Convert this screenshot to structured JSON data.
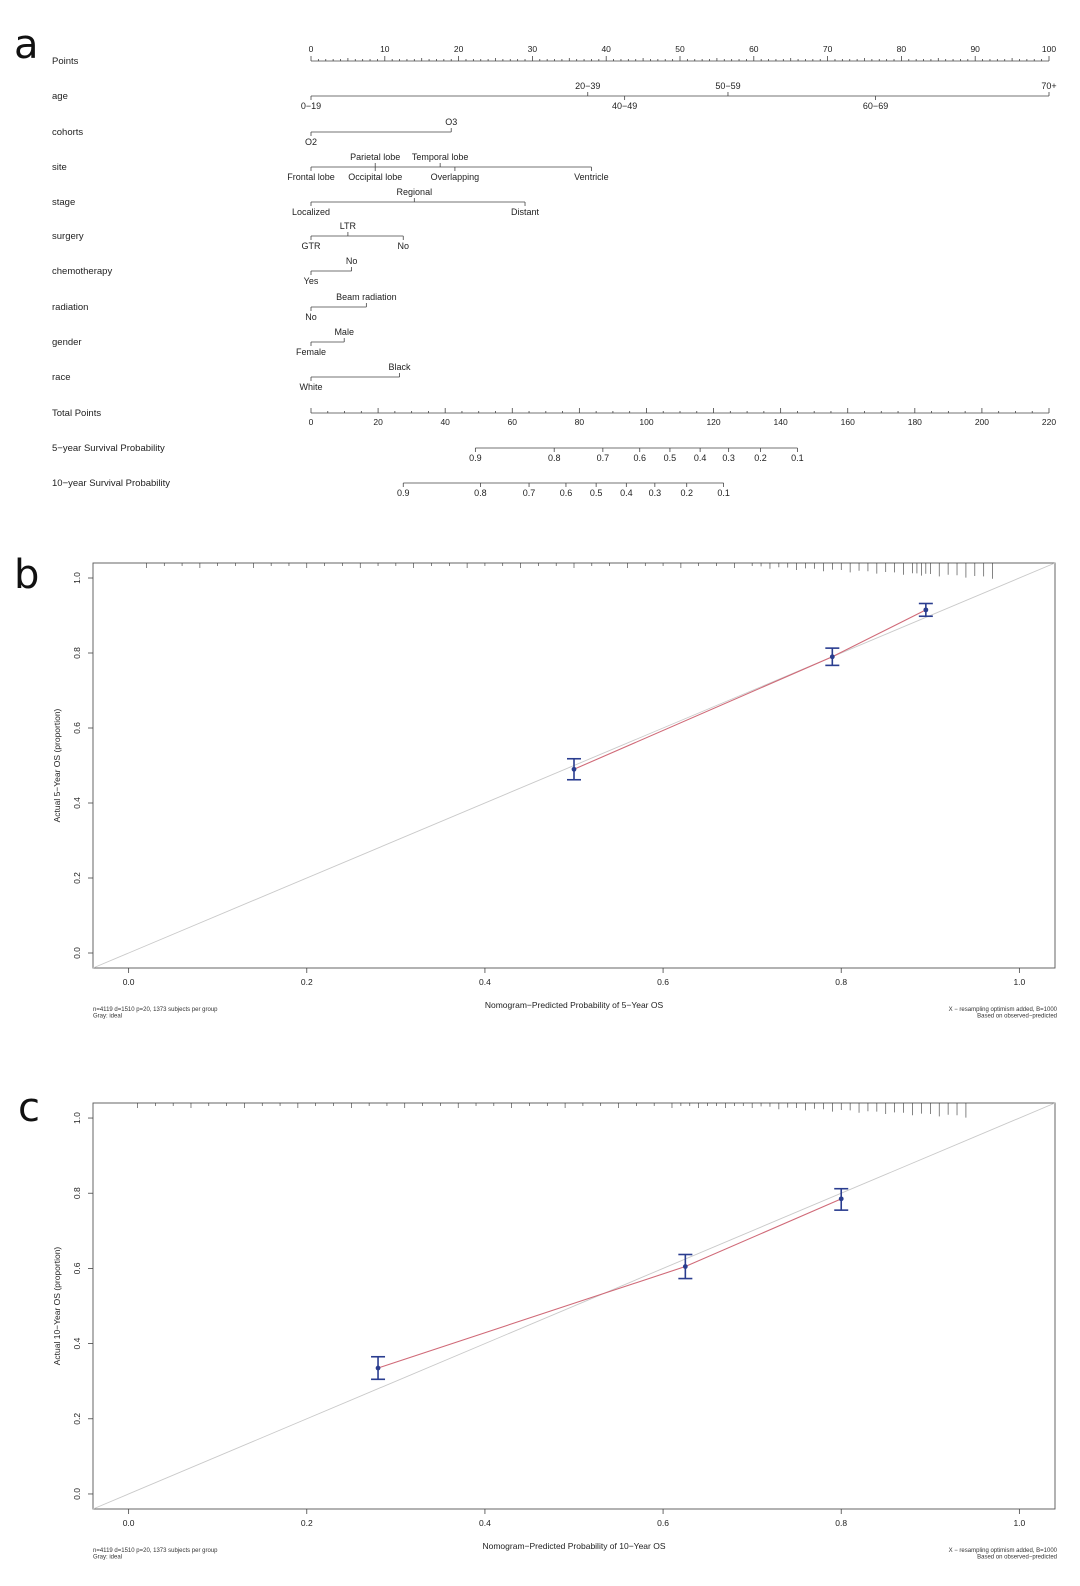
{
  "panels": {
    "a": "a",
    "b": "b",
    "c": "c"
  },
  "nomogram": {
    "rows": [
      {
        "label": "Points",
        "key": "points"
      },
      {
        "label": "age",
        "key": "age"
      },
      {
        "label": "cohorts",
        "key": "cohorts"
      },
      {
        "label": "site",
        "key": "site"
      },
      {
        "label": "stage",
        "key": "stage"
      },
      {
        "label": "surgery",
        "key": "surgery"
      },
      {
        "label": "chemotherapy",
        "key": "chemotherapy"
      },
      {
        "label": "radiation",
        "key": "radiation"
      },
      {
        "label": "gender",
        "key": "gender"
      },
      {
        "label": "race",
        "key": "race"
      },
      {
        "label": "Total Points",
        "key": "total"
      },
      {
        "label": "5−year Survival Probability",
        "key": "surv5"
      },
      {
        "label": "10−year Survival Probability",
        "key": "surv10"
      }
    ],
    "points_ticks": [
      "0",
      "10",
      "20",
      "30",
      "40",
      "50",
      "60",
      "70",
      "80",
      "90",
      "100"
    ],
    "age": [
      {
        "label": "0−19",
        "points": 0,
        "pos": "below"
      },
      {
        "label": "20−39",
        "points": 37.5,
        "pos": "above"
      },
      {
        "label": "40−49",
        "points": 42.5,
        "pos": "below"
      },
      {
        "label": "50−59",
        "points": 56.5,
        "pos": "above"
      },
      {
        "label": "60−69",
        "points": 76.5,
        "pos": "below"
      },
      {
        "label": "70+",
        "points": 100,
        "pos": "above"
      }
    ],
    "cohorts": [
      {
        "label": "O2",
        "points": 0,
        "pos": "below"
      },
      {
        "label": "O3",
        "points": 19,
        "pos": "above"
      }
    ],
    "site": [
      {
        "label": "Frontal lobe",
        "points": 0,
        "pos": "below"
      },
      {
        "label": "Parietal lobe",
        "points": 8.7,
        "pos": "above"
      },
      {
        "label": "Occipital lobe",
        "points": 8.7,
        "pos": "below"
      },
      {
        "label": "Temporal lobe",
        "points": 17.5,
        "pos": "above"
      },
      {
        "label": "Overlapping",
        "points": 19.5,
        "pos": "below"
      },
      {
        "label": "Ventricle",
        "points": 38,
        "pos": "below"
      }
    ],
    "stage": [
      {
        "label": "Localized",
        "points": 0,
        "pos": "below"
      },
      {
        "label": "Regional",
        "points": 14,
        "pos": "above"
      },
      {
        "label": "Distant",
        "points": 29,
        "pos": "below"
      }
    ],
    "surgery": [
      {
        "label": "GTR",
        "points": 0,
        "pos": "below"
      },
      {
        "label": "LTR",
        "points": 5,
        "pos": "above"
      },
      {
        "label": "No",
        "points": 12.5,
        "pos": "below"
      }
    ],
    "chemotherapy": [
      {
        "label": "Yes",
        "points": 0,
        "pos": "below"
      },
      {
        "label": "No",
        "points": 5.5,
        "pos": "above"
      }
    ],
    "radiation": [
      {
        "label": "No",
        "points": 0,
        "pos": "below"
      },
      {
        "label": "Beam radiation",
        "points": 7.5,
        "pos": "above"
      }
    ],
    "gender": [
      {
        "label": "Female",
        "points": 0,
        "pos": "below"
      },
      {
        "label": "Male",
        "points": 4.5,
        "pos": "above"
      }
    ],
    "race": [
      {
        "label": "White",
        "points": 0,
        "pos": "below"
      },
      {
        "label": "Black",
        "points": 12,
        "pos": "above"
      }
    ],
    "total_ticks": [
      "0",
      "20",
      "40",
      "60",
      "80",
      "100",
      "120",
      "140",
      "160",
      "180",
      "200",
      "220"
    ],
    "surv5": [
      {
        "label": "0.9",
        "total": 49
      },
      {
        "label": "0.8",
        "total": 72.5
      },
      {
        "label": "0.7",
        "total": 87
      },
      {
        "label": "0.6",
        "total": 98
      },
      {
        "label": "0.5",
        "total": 107
      },
      {
        "label": "0.4",
        "total": 116
      },
      {
        "label": "0.3",
        "total": 124.5
      },
      {
        "label": "0.2",
        "total": 134
      },
      {
        "label": "0.1",
        "total": 145
      }
    ],
    "surv10": [
      {
        "label": "0.9",
        "total": 27.5
      },
      {
        "label": "0.8",
        "total": 50.5
      },
      {
        "label": "0.7",
        "total": 65
      },
      {
        "label": "0.6",
        "total": 76
      },
      {
        "label": "0.5",
        "total": 85
      },
      {
        "label": "0.4",
        "total": 94
      },
      {
        "label": "0.3",
        "total": 102.5
      },
      {
        "label": "0.2",
        "total": 112
      },
      {
        "label": "0.1",
        "total": 123
      }
    ]
  },
  "chart_data": [
    {
      "type": "scatter",
      "title": "",
      "xlabel": "Nomogram−Predicted Probability of 5−Year OS",
      "ylabel": "Actual 5−Year OS (proportion)",
      "xlim": [
        -0.04,
        1.04
      ],
      "ylim": [
        -0.04,
        1.04
      ],
      "xticks": [
        "0.0",
        "0.2",
        "0.4",
        "0.6",
        "0.8",
        "1.0"
      ],
      "yticks": [
        "0.0",
        "0.2",
        "0.4",
        "0.6",
        "0.8",
        "1.0"
      ],
      "series": [
        {
          "name": "observed",
          "x": [
            0.5,
            0.79,
            0.895
          ],
          "y": [
            0.49,
            0.79,
            0.915
          ],
          "lower": [
            0.462,
            0.767,
            0.898
          ],
          "upper": [
            0.518,
            0.813,
            0.932
          ]
        },
        {
          "name": "ideal",
          "x": [
            -0.04,
            1.04
          ],
          "y": [
            -0.04,
            1.04
          ]
        }
      ],
      "rug": [
        0.02,
        0.04,
        0.06,
        0.08,
        0.1,
        0.12,
        0.14,
        0.16,
        0.18,
        0.2,
        0.22,
        0.24,
        0.26,
        0.28,
        0.3,
        0.32,
        0.34,
        0.36,
        0.38,
        0.4,
        0.42,
        0.44,
        0.46,
        0.48,
        0.5,
        0.52,
        0.54,
        0.56,
        0.58,
        0.6,
        0.62,
        0.64,
        0.66,
        0.68,
        0.7,
        0.71,
        0.72,
        0.73,
        0.74,
        0.75,
        0.76,
        0.77,
        0.78,
        0.79,
        0.8,
        0.81,
        0.82,
        0.83,
        0.84,
        0.85,
        0.86,
        0.87,
        0.88,
        0.885,
        0.89,
        0.895,
        0.9,
        0.91,
        0.92,
        0.93,
        0.94,
        0.95,
        0.96,
        0.97
      ],
      "footnote_left": [
        "n=4119 d=1510 p=20, 1373 subjects per group",
        "Gray: ideal"
      ],
      "footnote_right": [
        "X − resampling optimism added, B=1000",
        "Based on observed−predicted"
      ]
    },
    {
      "type": "scatter",
      "title": "",
      "xlabel": "Nomogram−Predicted Probability of 10−Year OS",
      "ylabel": "Actual 10−Year OS (proportion)",
      "xlim": [
        -0.04,
        1.04
      ],
      "ylim": [
        -0.04,
        1.04
      ],
      "xticks": [
        "0.0",
        "0.2",
        "0.4",
        "0.6",
        "0.8",
        "1.0"
      ],
      "yticks": [
        "0.0",
        "0.2",
        "0.4",
        "0.6",
        "0.8",
        "1.0"
      ],
      "series": [
        {
          "name": "observed",
          "x": [
            0.28,
            0.625,
            0.8
          ],
          "y": [
            0.335,
            0.605,
            0.785
          ],
          "lower": [
            0.305,
            0.573,
            0.755
          ],
          "upper": [
            0.365,
            0.637,
            0.812
          ]
        },
        {
          "name": "ideal",
          "x": [
            -0.04,
            1.04
          ],
          "y": [
            -0.04,
            1.04
          ]
        }
      ],
      "rug": [
        0.01,
        0.03,
        0.05,
        0.07,
        0.09,
        0.11,
        0.13,
        0.15,
        0.17,
        0.19,
        0.21,
        0.23,
        0.25,
        0.27,
        0.29,
        0.31,
        0.33,
        0.35,
        0.37,
        0.39,
        0.41,
        0.43,
        0.45,
        0.47,
        0.49,
        0.51,
        0.53,
        0.55,
        0.57,
        0.59,
        0.61,
        0.62,
        0.63,
        0.64,
        0.65,
        0.66,
        0.67,
        0.68,
        0.69,
        0.7,
        0.71,
        0.72,
        0.73,
        0.74,
        0.75,
        0.76,
        0.77,
        0.78,
        0.79,
        0.8,
        0.81,
        0.82,
        0.83,
        0.84,
        0.85,
        0.86,
        0.87,
        0.88,
        0.89,
        0.9,
        0.91,
        0.92,
        0.93,
        0.94
      ],
      "footnote_left": [
        "n=4119 d=1510 p=20, 1373 subjects per group",
        "Gray: ideal"
      ],
      "footnote_right": [
        "X − resampling optimism added, B=1000",
        "Based on observed−predicted"
      ]
    }
  ]
}
